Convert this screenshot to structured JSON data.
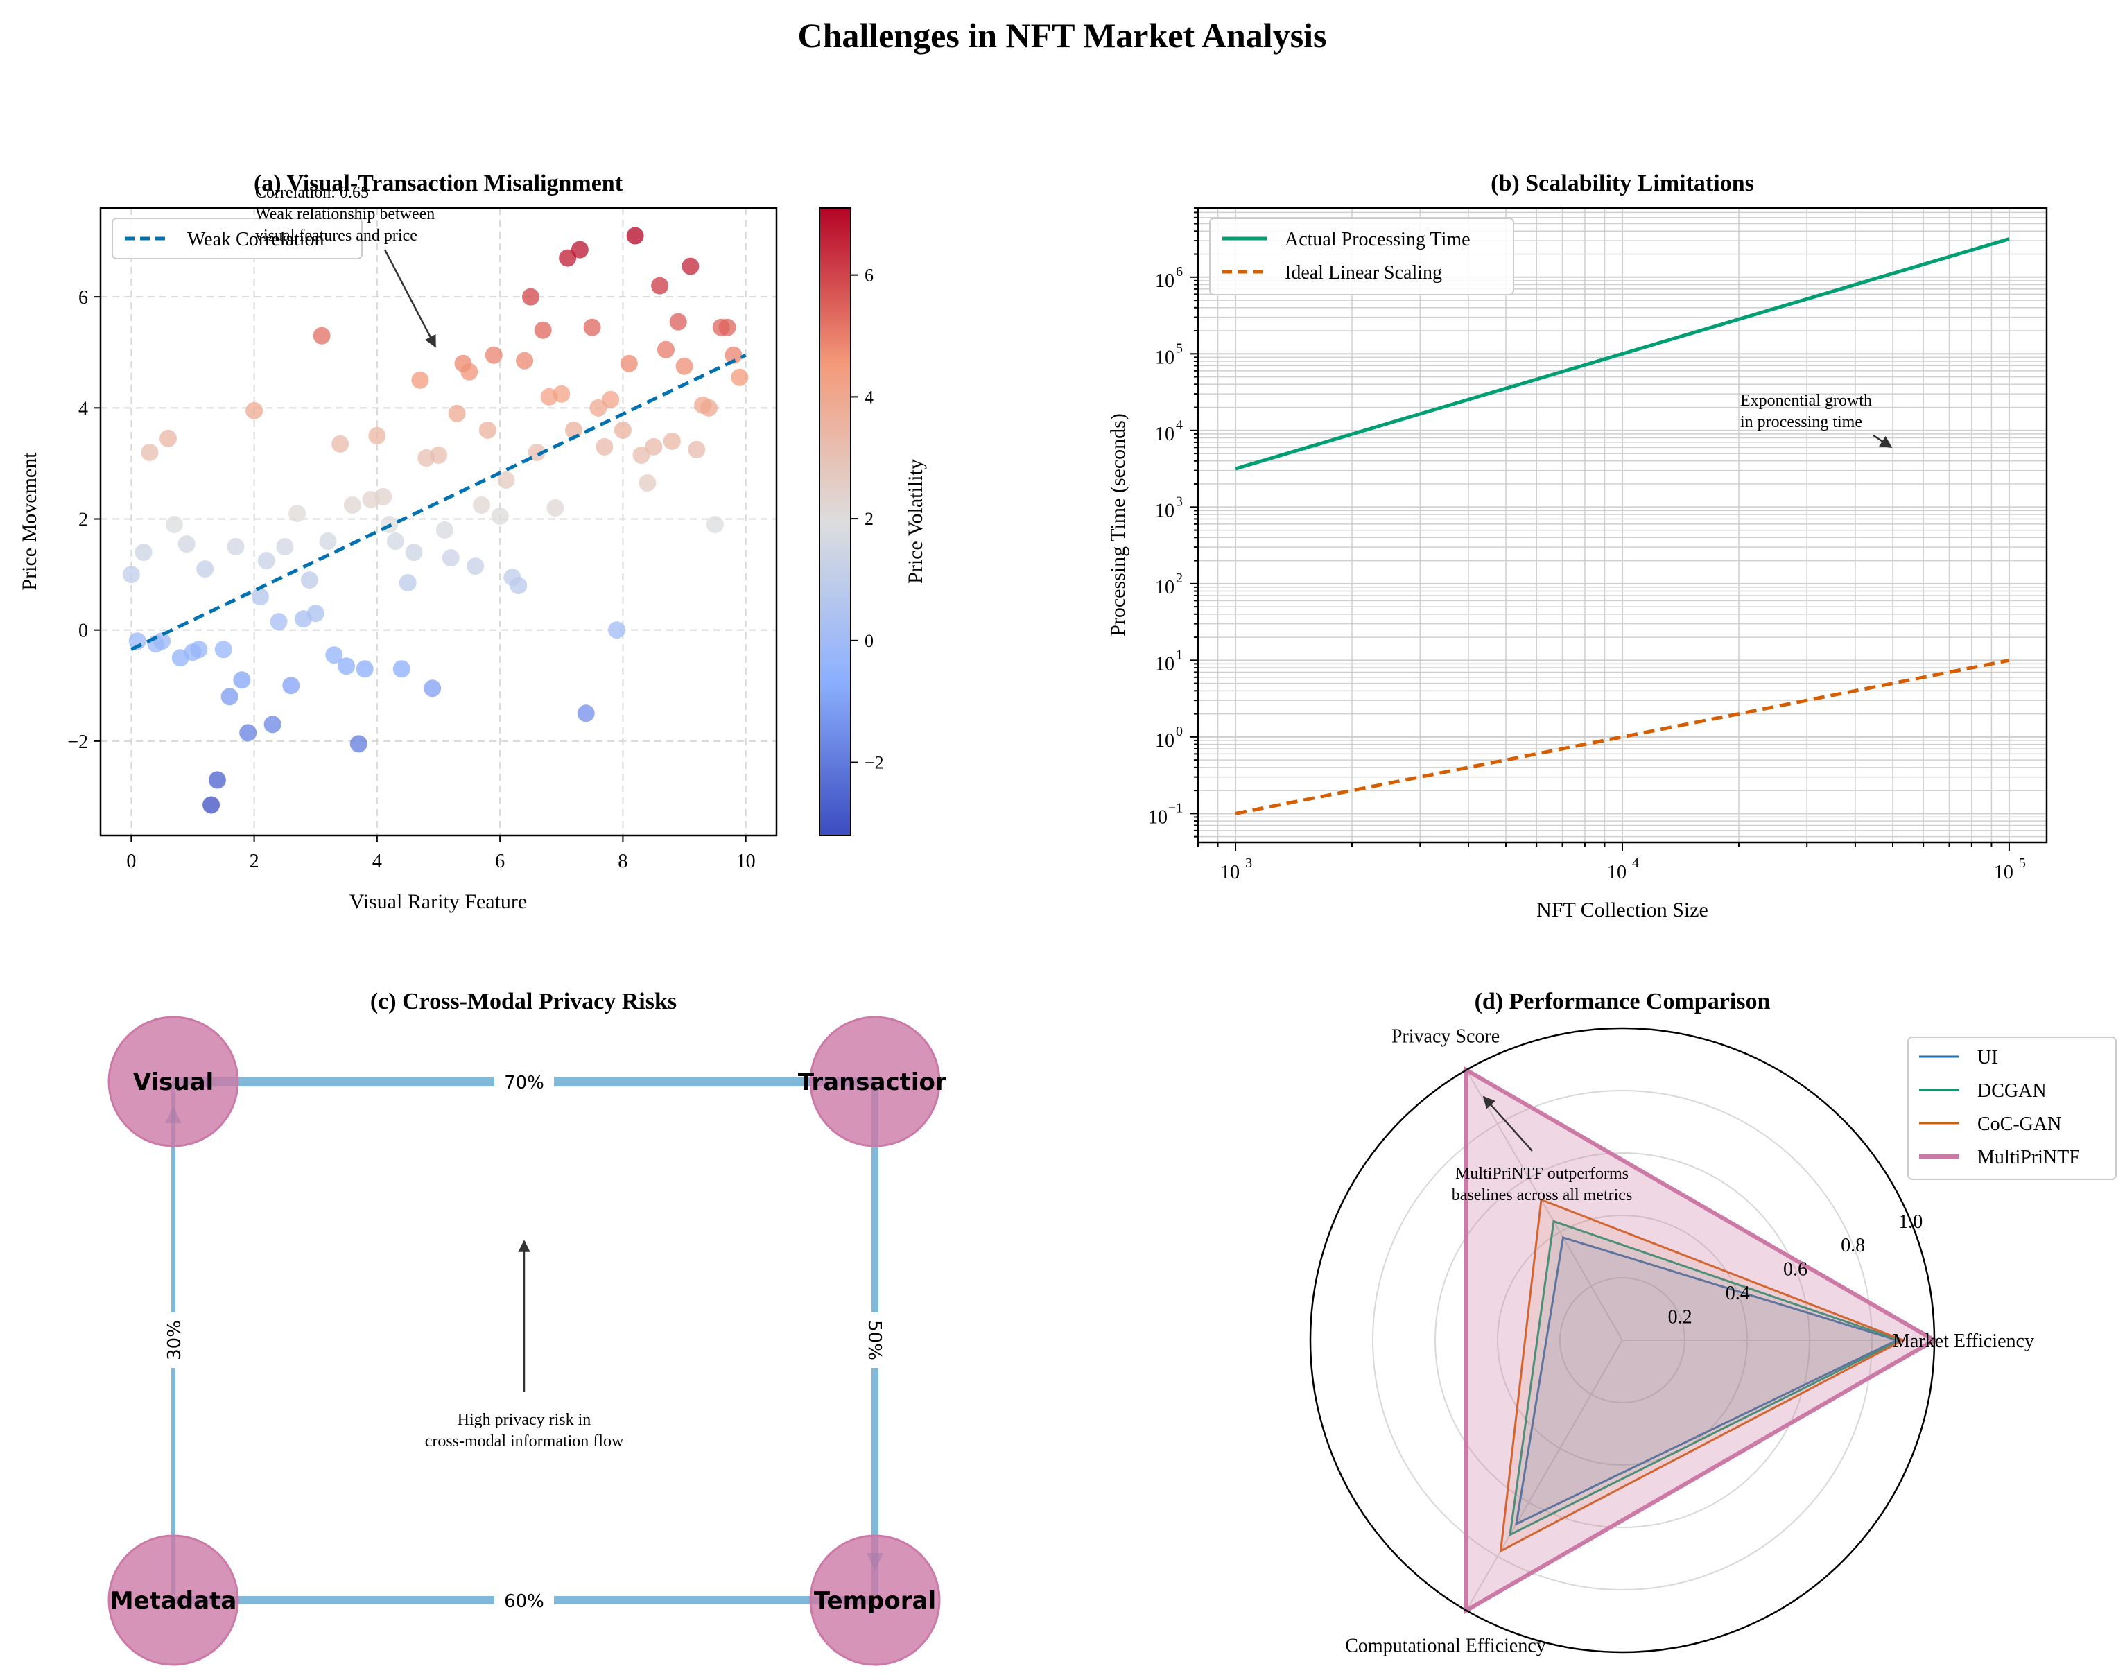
{
  "figure": {
    "title": "Challenges in NFT Market Analysis"
  },
  "chart_data": [
    {
      "id": "a",
      "type": "scatter",
      "title": "(a) Visual-Transaction Misalignment",
      "xlabel": "Visual Rarity Feature",
      "ylabel": "Price Movement",
      "xlim": [
        -0.5,
        10.5
      ],
      "ylim": [
        -3.7,
        7.6
      ],
      "xticks": [
        0,
        2,
        4,
        6,
        8,
        10
      ],
      "yticks": [
        -2,
        0,
        2,
        4,
        6
      ],
      "grid": true,
      "legend": {
        "position": "top-left",
        "entries": [
          "Weak Correlation"
        ]
      },
      "colorbar": {
        "label": "Price Volatility",
        "range": [
          -3.2,
          7.1
        ],
        "ticks": [
          -2,
          0,
          2,
          4,
          6
        ]
      },
      "annotation": {
        "text": [
          "Correlation: 0.65",
          "Weak relationship between",
          "visual features and price"
        ],
        "arrow_to": [
          5.0,
          5.0
        ]
      },
      "trend_line": {
        "name": "Weak Correlation",
        "x": [
          0,
          10
        ],
        "y": [
          -0.35,
          4.95
        ],
        "color": "#0072B2",
        "style": "dashed"
      },
      "points": [
        [
          0.0,
          1.0
        ],
        [
          0.1,
          -0.2
        ],
        [
          0.2,
          1.4
        ],
        [
          0.3,
          3.2
        ],
        [
          0.4,
          -0.25
        ],
        [
          0.5,
          -0.2
        ],
        [
          0.6,
          3.45
        ],
        [
          0.7,
          1.9
        ],
        [
          0.8,
          -0.5
        ],
        [
          0.9,
          1.55
        ],
        [
          1.0,
          -0.4
        ],
        [
          1.1,
          -0.35
        ],
        [
          1.2,
          1.1
        ],
        [
          1.3,
          -3.15
        ],
        [
          1.4,
          -2.7
        ],
        [
          1.5,
          -0.35
        ],
        [
          1.6,
          -1.2
        ],
        [
          1.7,
          1.5
        ],
        [
          1.8,
          -0.9
        ],
        [
          1.9,
          -1.85
        ],
        [
          2.0,
          3.95
        ],
        [
          2.1,
          0.6
        ],
        [
          2.2,
          1.25
        ],
        [
          2.3,
          -1.7
        ],
        [
          2.4,
          0.15
        ],
        [
          2.5,
          1.5
        ],
        [
          2.6,
          -1.0
        ],
        [
          2.7,
          2.1
        ],
        [
          2.8,
          0.2
        ],
        [
          2.9,
          0.9
        ],
        [
          3.0,
          0.3
        ],
        [
          3.1,
          5.3
        ],
        [
          3.2,
          1.6
        ],
        [
          3.3,
          -0.45
        ],
        [
          3.4,
          3.35
        ],
        [
          3.5,
          -0.65
        ],
        [
          3.6,
          2.25
        ],
        [
          3.7,
          -2.05
        ],
        [
          3.8,
          -0.7
        ],
        [
          3.9,
          2.35
        ],
        [
          4.0,
          3.5
        ],
        [
          4.1,
          2.4
        ],
        [
          4.2,
          1.9
        ],
        [
          4.3,
          1.6
        ],
        [
          4.4,
          -0.7
        ],
        [
          4.5,
          0.85
        ],
        [
          4.6,
          1.4
        ],
        [
          4.7,
          4.5
        ],
        [
          4.8,
          3.1
        ],
        [
          4.9,
          -1.05
        ],
        [
          5.0,
          3.15
        ],
        [
          5.1,
          1.8
        ],
        [
          5.2,
          1.3
        ],
        [
          5.3,
          3.9
        ],
        [
          5.4,
          4.8
        ],
        [
          5.5,
          4.65
        ],
        [
          5.6,
          1.15
        ],
        [
          5.7,
          2.25
        ],
        [
          5.8,
          3.6
        ],
        [
          5.9,
          4.95
        ],
        [
          6.0,
          2.05
        ],
        [
          6.1,
          2.7
        ],
        [
          6.2,
          0.95
        ],
        [
          6.3,
          0.8
        ],
        [
          6.4,
          4.85
        ],
        [
          6.5,
          6.0
        ],
        [
          6.6,
          3.2
        ],
        [
          6.7,
          5.4
        ],
        [
          6.8,
          4.2
        ],
        [
          6.9,
          2.2
        ],
        [
          7.0,
          4.25
        ],
        [
          7.1,
          6.7
        ],
        [
          7.2,
          3.6
        ],
        [
          7.3,
          6.85
        ],
        [
          7.4,
          -1.5
        ],
        [
          7.5,
          5.45
        ],
        [
          7.6,
          4.0
        ],
        [
          7.7,
          3.3
        ],
        [
          7.8,
          4.15
        ],
        [
          7.9,
          0.0
        ],
        [
          8.0,
          3.6
        ],
        [
          8.1,
          4.8
        ],
        [
          8.2,
          7.1
        ],
        [
          8.3,
          3.15
        ],
        [
          8.4,
          2.65
        ],
        [
          8.5,
          3.3
        ],
        [
          8.6,
          6.2
        ],
        [
          8.7,
          5.05
        ],
        [
          8.8,
          3.4
        ],
        [
          8.9,
          5.55
        ],
        [
          9.0,
          4.75
        ],
        [
          9.1,
          6.55
        ],
        [
          9.2,
          3.25
        ],
        [
          9.3,
          4.05
        ],
        [
          9.4,
          4.0
        ],
        [
          9.5,
          1.9
        ],
        [
          9.6,
          5.45
        ],
        [
          9.7,
          5.45
        ],
        [
          9.8,
          4.95
        ],
        [
          9.9,
          4.55
        ]
      ]
    },
    {
      "id": "b",
      "type": "line",
      "title": "(b) Scalability Limitations",
      "xlabel": "NFT Collection Size",
      "ylabel": "Processing Time (seconds)",
      "xscale": "log",
      "yscale": "log",
      "xlim": [
        800,
        125000
      ],
      "ylim": [
        0.042,
        8000000
      ],
      "xticks": [
        1000,
        10000,
        100000
      ],
      "xtick_labels": [
        "10",
        "10",
        "10"
      ],
      "xtick_exps": [
        "3",
        "4",
        "5"
      ],
      "yticks": [
        0.1,
        1,
        10,
        100,
        1000,
        10000,
        100000,
        1000000
      ],
      "ytick_labels": [
        "10",
        "10",
        "10",
        "10",
        "10",
        "10",
        "10",
        "10"
      ],
      "ytick_exps": [
        "−1",
        "0",
        "1",
        "2",
        "3",
        "4",
        "5",
        "6"
      ],
      "grid": true,
      "legend": {
        "position": "top-left"
      },
      "annotation": {
        "text": [
          "Exponential growth",
          "in processing time"
        ],
        "arrow_to": [
          50000,
          5000
        ]
      },
      "series": [
        {
          "name": "Actual Processing Time",
          "color": "#009E73",
          "style": "solid",
          "x": [
            1000,
            100000
          ],
          "y": [
            3162,
            3162277
          ]
        },
        {
          "name": "Ideal Linear Scaling",
          "color": "#D55E00",
          "style": "dashed",
          "x": [
            1000,
            100000
          ],
          "y": [
            0.1,
            10
          ]
        }
      ]
    },
    {
      "id": "c",
      "type": "network",
      "title": "(c) Cross-Modal Privacy Risks",
      "nodes": [
        {
          "id": "visual",
          "label": "Visual"
        },
        {
          "id": "transaction",
          "label": "Transaction"
        },
        {
          "id": "metadata",
          "label": "Metadata"
        },
        {
          "id": "temporal",
          "label": "Temporal"
        }
      ],
      "edges": [
        {
          "from": "visual",
          "to": "transaction",
          "label": "70%",
          "value": 0.7
        },
        {
          "from": "transaction",
          "to": "temporal",
          "label": "50%",
          "value": 0.5
        },
        {
          "from": "metadata",
          "to": "temporal",
          "label": "60%",
          "value": 0.6
        },
        {
          "from": "metadata",
          "to": "visual",
          "label": "30%",
          "value": 0.3
        }
      ],
      "annotation": {
        "text": [
          "High privacy risk in",
          "cross-modal information flow"
        ]
      },
      "node_color": "#CC79A7",
      "edge_color": "#0072B2"
    },
    {
      "id": "d",
      "type": "radar",
      "title": "(d) Performance Comparison",
      "axes": [
        "Market Efficiency",
        "Privacy Score",
        "Computational Efficiency"
      ],
      "rticks": [
        0.2,
        0.4,
        0.6,
        0.8,
        1.0
      ],
      "rtick_labels": [
        "0.2",
        "0.4",
        "0.6",
        "0.8",
        "1.0"
      ],
      "legend": {
        "position": "top-right"
      },
      "annotation": {
        "text": [
          "MultiPriNTF outperforms",
          "baselines across all metrics"
        ]
      },
      "series": [
        {
          "name": "UI",
          "color": "#1f6fb4",
          "values": [
            0.88,
            0.38,
            0.68
          ]
        },
        {
          "name": "DCGAN",
          "color": "#009E73",
          "values": [
            0.89,
            0.44,
            0.72
          ]
        },
        {
          "name": "CoC-GAN",
          "color": "#D55E00",
          "values": [
            0.9,
            0.52,
            0.78
          ]
        },
        {
          "name": "MultiPriNTF",
          "color": "#CC79A7",
          "values": [
            1.0,
            1.0,
            1.0
          ]
        }
      ]
    }
  ]
}
